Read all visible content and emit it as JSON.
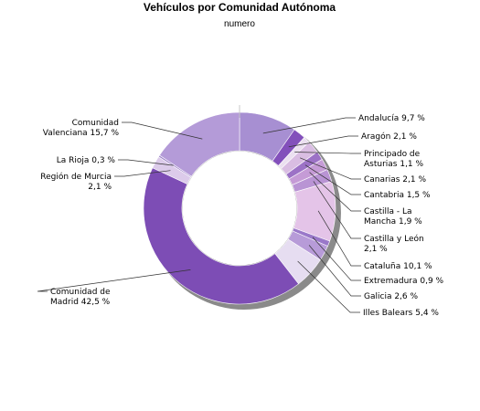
{
  "chart_data": {
    "type": "pie",
    "title": "Vehículos por Comunidad Autónoma",
    "subtitle": "numero",
    "slices": [
      {
        "label": [
          "Andalucía 9,7 %"
        ],
        "value": 9.7,
        "color": "#a78fd2"
      },
      {
        "label": [
          "Aragón 2,1 %"
        ],
        "value": 2.1,
        "color": "#8350bb"
      },
      {
        "label": [
          "Principado de",
          "Asturias 1,1 %"
        ],
        "value": 1.1,
        "color": "#ebe0f0"
      },
      {
        "label": [
          "Canarias 2,1 %"
        ],
        "value": 2.1,
        "color": "#d9bde2"
      },
      {
        "label": [
          "Cantabria 1,5 %"
        ],
        "value": 1.5,
        "color": "#9c72c6"
      },
      {
        "label": [
          "Castilla - La",
          "Mancha 1,9 %"
        ],
        "value": 1.9,
        "color": "#c59bd6"
      },
      {
        "label": [
          "Castilla y León",
          "2,1 %"
        ],
        "value": 2.1,
        "color": "#b994d4"
      },
      {
        "label": [
          "Cataluña 10,1 %"
        ],
        "value": 10.1,
        "color": "#e4c4e8"
      },
      {
        "label": [
          "Extremadura 0,9 %"
        ],
        "value": 0.9,
        "color": "#9a78c9"
      },
      {
        "label": [
          "Galicia 2,6 %"
        ],
        "value": 2.6,
        "color": "#b79bd8"
      },
      {
        "label": [
          "Illes Balears 5,4 %"
        ],
        "value": 5.4,
        "color": "#e6ddf1"
      },
      {
        "label": [
          "Comunidad de",
          "Madrid 42,5 %"
        ],
        "value": 42.5,
        "color": "#7d4db5"
      },
      {
        "label": [
          "Región de Murcia",
          "2,1 %"
        ],
        "value": 2.1,
        "color": "#dccbea"
      },
      {
        "label": [
          "La Rioja 0,3 %"
        ],
        "value": 0.3,
        "color": "#9d82c8"
      },
      {
        "label": [
          "Comunidad",
          "Valenciana 15,7 %"
        ],
        "value": 15.7,
        "color": "#b49bd8"
      }
    ]
  }
}
